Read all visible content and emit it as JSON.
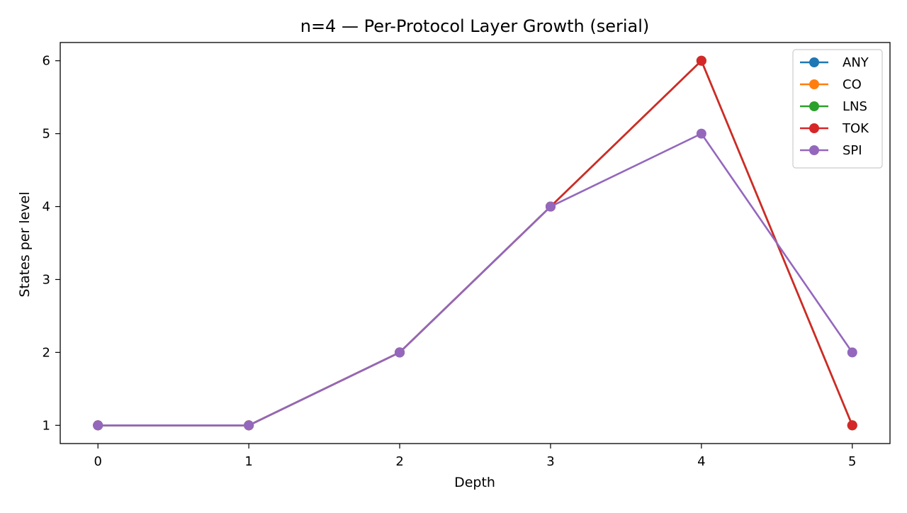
{
  "chart_data": {
    "type": "line",
    "title": "n=4 — Per-Protocol Layer Growth (serial)",
    "xlabel": "Depth",
    "ylabel": "States per level",
    "x": [
      0,
      1,
      2,
      3,
      4,
      5
    ],
    "xlim": [
      -0.25,
      5.25
    ],
    "ylim": [
      0.75,
      6.25
    ],
    "xticks": [
      0,
      1,
      2,
      3,
      4,
      5
    ],
    "yticks": [
      1,
      2,
      3,
      4,
      5,
      6
    ],
    "grid": false,
    "legend_position": "top-right",
    "series": [
      {
        "name": "ANY",
        "color": "#1f77b4",
        "values": [
          1,
          1,
          2,
          4,
          6,
          1
        ]
      },
      {
        "name": "CO",
        "color": "#ff7f0e",
        "values": [
          1,
          1,
          2,
          4,
          6,
          1
        ]
      },
      {
        "name": "LNS",
        "color": "#2ca02c",
        "values": [
          1,
          1,
          2,
          4,
          6,
          1
        ]
      },
      {
        "name": "TOK",
        "color": "#d62728",
        "values": [
          1,
          1,
          2,
          4,
          6,
          1
        ]
      },
      {
        "name": "SPI",
        "color": "#9467bd",
        "values": [
          1,
          1,
          2,
          4,
          5,
          2
        ]
      }
    ]
  }
}
